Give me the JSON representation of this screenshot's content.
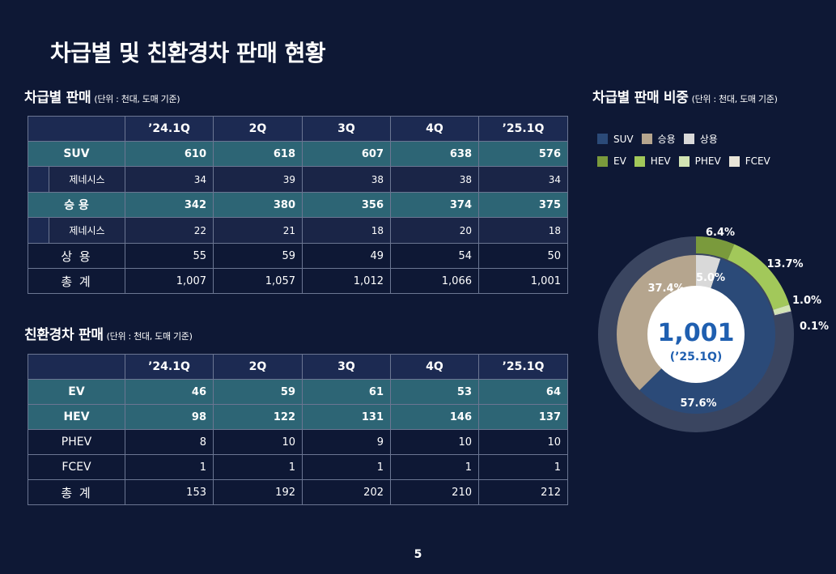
{
  "page_title": "차급별 및 친환경차 판매 현황",
  "segment_table": {
    "title": "차급별 판매",
    "unit": "(단위 : 천대, 도매 기준)",
    "columns": [
      "’24.1Q",
      "2Q",
      "3Q",
      "4Q",
      "’25.1Q"
    ],
    "rows": [
      {
        "label": "SUV",
        "style": "hl",
        "values": [
          "610",
          "618",
          "607",
          "638",
          "576"
        ]
      },
      {
        "label": "제네시스",
        "style": "sub",
        "values": [
          "34",
          "39",
          "38",
          "38",
          "34"
        ]
      },
      {
        "label": "승 용",
        "style": "hl",
        "values": [
          "342",
          "380",
          "356",
          "374",
          "375"
        ]
      },
      {
        "label": "제네시스",
        "style": "sub",
        "values": [
          "22",
          "21",
          "18",
          "20",
          "18"
        ]
      },
      {
        "label": "상 용",
        "style": "plain",
        "values": [
          "55",
          "59",
          "49",
          "54",
          "50"
        ]
      },
      {
        "label": "총 계",
        "style": "plain",
        "values": [
          "1,007",
          "1,057",
          "1,012",
          "1,066",
          "1,001"
        ]
      }
    ]
  },
  "eco_table": {
    "title": "친환경차 판매",
    "unit": "(단위 : 천대, 도매 기준)",
    "columns": [
      "’24.1Q",
      "2Q",
      "3Q",
      "4Q",
      "’25.1Q"
    ],
    "rows": [
      {
        "label": "EV",
        "style": "hl",
        "values": [
          "46",
          "59",
          "61",
          "53",
          "64"
        ]
      },
      {
        "label": "HEV",
        "style": "hl",
        "values": [
          "98",
          "122",
          "131",
          "146",
          "137"
        ]
      },
      {
        "label": "PHEV",
        "style": "plain-en",
        "values": [
          "8",
          "10",
          "9",
          "10",
          "10"
        ]
      },
      {
        "label": "FCEV",
        "style": "plain-en",
        "values": [
          "1",
          "1",
          "1",
          "1",
          "1"
        ]
      },
      {
        "label": "총 계",
        "style": "plain",
        "values": [
          "153",
          "192",
          "202",
          "210",
          "212"
        ]
      }
    ]
  },
  "share_chart": {
    "title": "차급별 판매 비중",
    "unit": "(단위 : 천대, 도매 기준)",
    "legend_row1": [
      {
        "name": "SUV",
        "color": "#2b4a78"
      },
      {
        "name": "승용",
        "color": "#b5a58e"
      },
      {
        "name": "상용",
        "color": "#d9d9d9"
      }
    ],
    "legend_row2": [
      {
        "name": "EV",
        "color": "#7a9a3c"
      },
      {
        "name": "HEV",
        "color": "#a2c85a"
      },
      {
        "name": "PHEV",
        "color": "#d2e4b4"
      },
      {
        "name": "FCEV",
        "color": "#e8e4d8"
      }
    ],
    "center_value": "1,001",
    "center_label": "(’25.1Q)",
    "center_color": "#1f5fb0",
    "outer_base_color": "#3a4560"
  },
  "chart_data": {
    "type": "pie",
    "inner_ring": [
      {
        "name": "SUV",
        "value": 57.6,
        "label": "57.6%",
        "color": "#2b4a78"
      },
      {
        "name": "승용",
        "value": 37.4,
        "label": "37.4%",
        "color": "#b5a58e"
      },
      {
        "name": "상용",
        "value": 5.0,
        "label": "5.0%",
        "color": "#d9d9d9"
      }
    ],
    "outer_ring": [
      {
        "name": "EV",
        "value": 6.4,
        "label": "6.4%",
        "color": "#7a9a3c"
      },
      {
        "name": "HEV",
        "value": 13.7,
        "label": "13.7%",
        "color": "#a2c85a"
      },
      {
        "name": "PHEV",
        "value": 1.0,
        "label": "1.0%",
        "color": "#d2e4b4"
      },
      {
        "name": "FCEV",
        "value": 0.1,
        "label": "0.1%",
        "color": "#e8e4d8"
      }
    ]
  },
  "page_number": "5"
}
